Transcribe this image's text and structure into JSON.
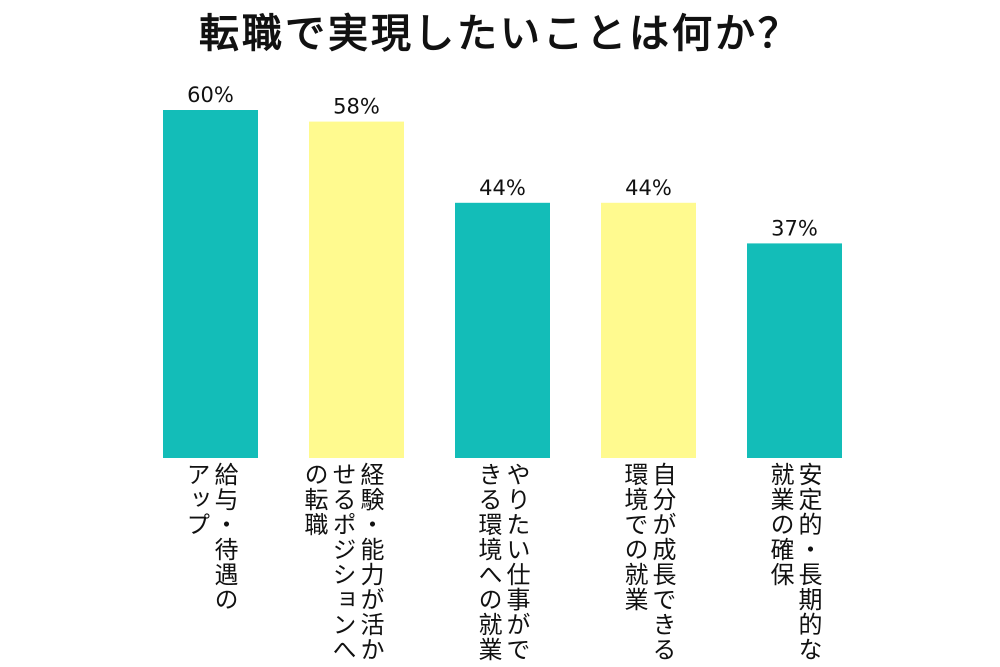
{
  "title": "転職で実現したいことは何か？",
  "chart_data": {
    "type": "bar",
    "title": "転職で実現したいことは何か？",
    "xlabel": "",
    "ylabel": "",
    "ylim": [
      0,
      70
    ],
    "grid": false,
    "legend": "none",
    "categories": [
      "給与・待遇のアップ",
      "経験・能力が活かせるポジションへの転職",
      "やりたい仕事ができる環境への就業",
      "自分が成長できる環境での就業",
      "安定的・長期的な就業の確保"
    ],
    "category_lines": [
      [
        "給与・待遇の",
        "アップ"
      ],
      [
        "経験・能力が活か",
        "せるポジションへ",
        "の転職"
      ],
      [
        "やりたい仕事がで",
        "きる環境への就業"
      ],
      [
        "自分が成長できる",
        "環境での就業"
      ],
      [
        "安定的・長期的な",
        "就業の確保"
      ]
    ],
    "values": [
      60,
      58,
      44,
      44,
      37
    ],
    "value_labels": [
      "60%",
      "58%",
      "44%",
      "44%",
      "37%"
    ],
    "colors": [
      "#13bdb8",
      "#fffa8f",
      "#13bdb8",
      "#fffa8f",
      "#13bdb8"
    ]
  }
}
